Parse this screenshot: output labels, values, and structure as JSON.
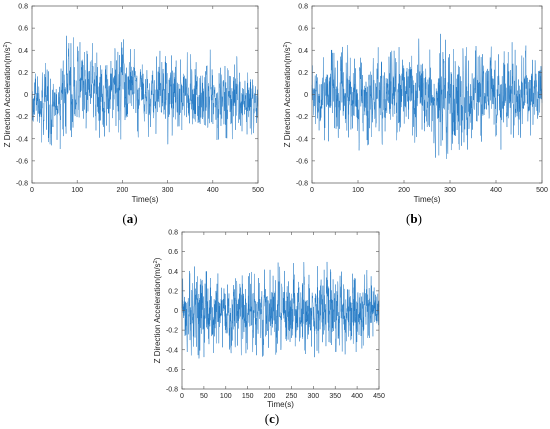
{
  "chart_data": [
    {
      "panel": "(a)",
      "type": "line",
      "xlabel": "Time(s)",
      "ylabel_main": "Z Direction Acceleration(m/s",
      "ylabel_sup": "2",
      "ylabel_end": ")",
      "xlim": [
        0,
        500
      ],
      "ylim": [
        -0.8,
        0.8
      ],
      "xticks": [
        0,
        100,
        200,
        300,
        400,
        500
      ],
      "yticks": [
        -0.8,
        -0.6,
        -0.4,
        -0.2,
        0,
        0.2,
        0.4,
        0.6,
        0.8
      ],
      "color": "#1f77c4",
      "series": [
        {
          "x": [
            0,
            20,
            40,
            60,
            70,
            80,
            100,
            120,
            140,
            160,
            180,
            200,
            220,
            240,
            260,
            280,
            300,
            320,
            340,
            360,
            380,
            400,
            420,
            440,
            460,
            480,
            500
          ],
          "y_max": [
            0.2,
            0.3,
            0.28,
            0.25,
            0.56,
            0.58,
            0.52,
            0.45,
            0.48,
            0.42,
            0.45,
            0.62,
            0.5,
            0.45,
            0.4,
            0.42,
            0.5,
            0.4,
            0.48,
            0.38,
            0.4,
            0.45,
            0.42,
            0.48,
            0.45,
            0.38,
            0.3
          ],
          "y_min": [
            -0.3,
            -0.45,
            -0.5,
            -0.55,
            -0.6,
            -0.5,
            -0.48,
            -0.42,
            -0.45,
            -0.42,
            -0.4,
            -0.45,
            -0.4,
            -0.4,
            -0.38,
            -0.4,
            -0.45,
            -0.42,
            -0.4,
            -0.4,
            -0.38,
            -0.42,
            -0.4,
            -0.4,
            -0.42,
            -0.38,
            -0.32
          ],
          "y_center": [
            -0.05,
            -0.1,
            -0.1,
            -0.08,
            0.08,
            0.1,
            0.08,
            0.05,
            0.04,
            0.03,
            0.05,
            0.08,
            0.04,
            0.02,
            0.01,
            0.0,
            0.02,
            0.0,
            0.0,
            -0.02,
            -0.02,
            -0.03,
            -0.03,
            -0.04,
            -0.05,
            -0.05,
            -0.05
          ]
        }
      ]
    },
    {
      "panel": "(b)",
      "type": "line",
      "xlabel": "Time(s)",
      "ylabel_main": "Z Direction Acceleration(m/s",
      "ylabel_sup": "2",
      "ylabel_end": ")",
      "xlim": [
        0,
        500
      ],
      "ylim": [
        -0.8,
        0.8
      ],
      "xticks": [
        0,
        100,
        200,
        300,
        400,
        500
      ],
      "yticks": [
        -0.8,
        -0.6,
        -0.4,
        -0.2,
        0,
        0.2,
        0.4,
        0.6,
        0.8
      ],
      "color": "#1f77c4",
      "series": [
        {
          "x": [
            0,
            20,
            40,
            60,
            80,
            100,
            120,
            140,
            160,
            180,
            200,
            220,
            240,
            260,
            280,
            300,
            320,
            340,
            360,
            380,
            400,
            420,
            440,
            460,
            480,
            500
          ],
          "y_max": [
            0.3,
            0.35,
            0.4,
            0.42,
            0.45,
            0.5,
            0.48,
            0.45,
            0.5,
            0.48,
            0.45,
            0.48,
            0.52,
            0.5,
            0.55,
            0.65,
            0.52,
            0.5,
            0.48,
            0.5,
            0.52,
            0.45,
            0.48,
            0.45,
            0.42,
            0.4
          ],
          "y_min": [
            -0.4,
            -0.45,
            -0.48,
            -0.5,
            -0.52,
            -0.5,
            -0.55,
            -0.5,
            -0.5,
            -0.55,
            -0.5,
            -0.52,
            -0.5,
            -0.55,
            -0.6,
            -0.65,
            -0.5,
            -0.52,
            -0.5,
            -0.48,
            -0.5,
            -0.5,
            -0.52,
            -0.48,
            -0.45,
            -0.4
          ],
          "y_center": [
            0,
            0,
            0,
            0,
            0,
            0,
            0,
            0,
            0,
            0,
            0,
            0,
            0,
            0,
            0,
            0,
            0,
            0,
            0,
            0,
            0,
            0,
            0,
            0,
            0,
            0
          ]
        }
      ]
    },
    {
      "panel": "(c)",
      "type": "line",
      "xlabel": "Time(s)",
      "ylabel_main": "Z Direction Acceleration(m/s",
      "ylabel_sup": "2",
      "ylabel_end": ")",
      "xlim": [
        0,
        450
      ],
      "ylim": [
        -0.8,
        0.8
      ],
      "xticks": [
        0,
        50,
        100,
        150,
        200,
        250,
        300,
        350,
        400,
        450
      ],
      "yticks": [
        -0.8,
        -0.6,
        -0.4,
        -0.2,
        0,
        0.2,
        0.4,
        0.6,
        0.8
      ],
      "color": "#1f77c4",
      "series": [
        {
          "x": [
            0,
            25,
            50,
            75,
            100,
            125,
            150,
            175,
            200,
            225,
            250,
            275,
            300,
            325,
            350,
            375,
            400,
            425,
            450
          ],
          "y_max": [
            0.3,
            0.65,
            0.5,
            0.45,
            0.4,
            0.45,
            0.42,
            0.45,
            0.45,
            0.5,
            0.48,
            0.5,
            0.45,
            0.5,
            0.48,
            0.45,
            0.45,
            0.42,
            0.35
          ],
          "y_min": [
            -0.35,
            -0.5,
            -0.48,
            -0.45,
            -0.42,
            -0.45,
            -0.55,
            -0.48,
            -0.45,
            -0.45,
            -0.48,
            -0.5,
            -0.55,
            -0.48,
            -0.42,
            -0.45,
            -0.42,
            -0.4,
            -0.35
          ],
          "y_center": [
            0,
            0,
            0,
            0,
            0,
            0,
            0,
            0,
            0,
            0,
            0,
            0,
            0,
            0,
            0,
            0,
            0,
            0,
            0
          ]
        }
      ]
    }
  ]
}
